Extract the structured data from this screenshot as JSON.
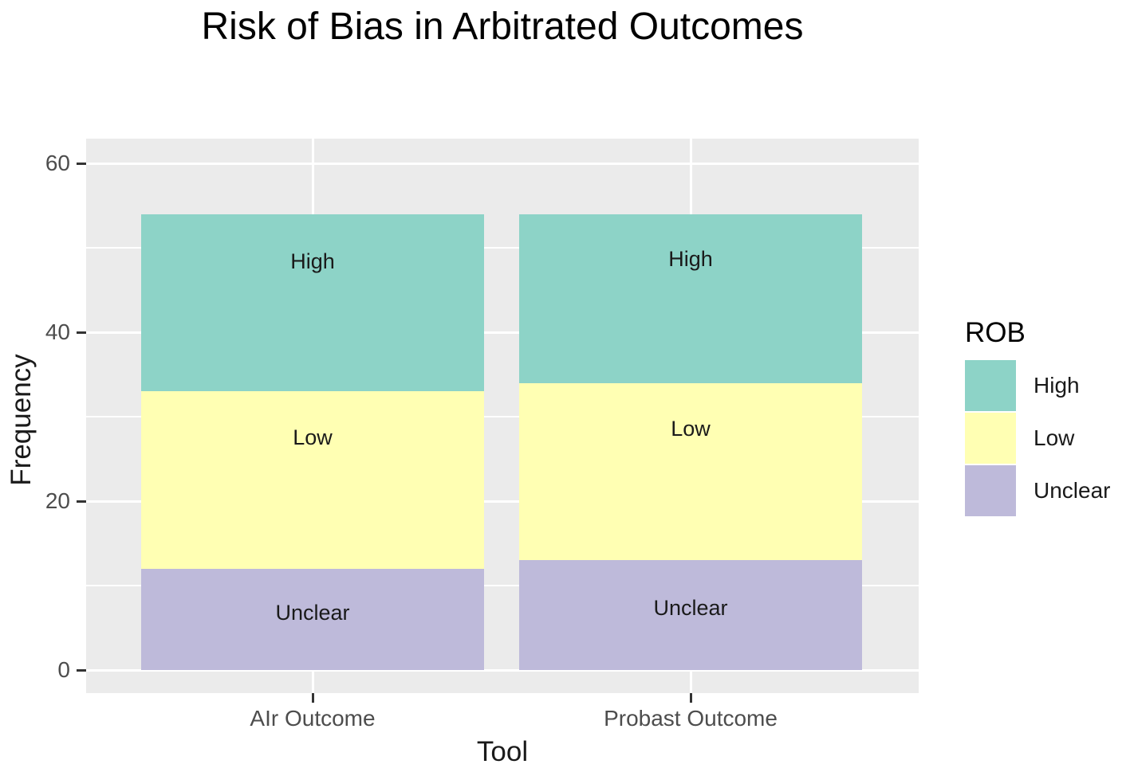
{
  "title": "Risk of Bias in Arbitrated Outcomes",
  "chart_data": {
    "type": "bar",
    "stacked": true,
    "title": "Risk of Bias in Arbitrated Outcomes",
    "xlabel": "Tool",
    "ylabel": "Frequency",
    "categories": [
      "AIr Outcome",
      "Probast Outcome"
    ],
    "series": [
      {
        "name": "High",
        "color": "#8DD3C7",
        "values": [
          21,
          20
        ]
      },
      {
        "name": "Low",
        "color": "#FFFFB3",
        "values": [
          21,
          21
        ]
      },
      {
        "name": "Unclear",
        "color": "#BEBADA",
        "values": [
          12,
          13
        ]
      }
    ],
    "stack_order_bottom_to_top": [
      "Unclear",
      "Low",
      "High"
    ],
    "totals": [
      54,
      54
    ],
    "bar_labels": [
      "High",
      "Low",
      "Unclear"
    ],
    "yticks": [
      0,
      20,
      40,
      60
    ],
    "yticks_minor": [
      10,
      30,
      50
    ],
    "ylim": [
      0,
      63
    ],
    "grid": "white major and minor horizontal lines plus major vertical lines on gray panel",
    "panel_bg": "#EBEBEB",
    "legend": {
      "title": "ROB",
      "position": "right",
      "entries": [
        "High",
        "Low",
        "Unclear"
      ]
    }
  }
}
